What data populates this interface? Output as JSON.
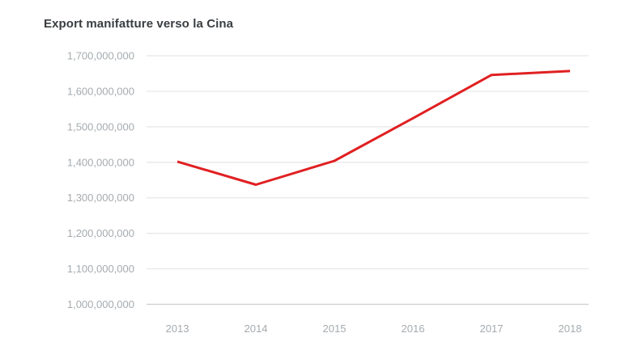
{
  "chart": {
    "title": "Export manifatture verso la Cina"
  },
  "colors": {
    "line": "#e02022",
    "grid": "#e6e6e6",
    "grid_bottom": "#d2d3d4",
    "tick_label": "#a6abaf",
    "title": "#3a3d40",
    "background": "#ffffff"
  },
  "chart_data": {
    "type": "line",
    "title": "Export manifatture verso la Cina",
    "xlabel": "",
    "ylabel": "",
    "categories": [
      "2013",
      "2014",
      "2015",
      "2016",
      "2017",
      "2018"
    ],
    "series": [
      {
        "name": "Export manifatture verso la Cina",
        "values": [
          1402000000,
          1337000000,
          1404000000,
          1524000000,
          1646000000,
          1657000000
        ]
      }
    ],
    "ylim": [
      1000000000,
      1700000000
    ],
    "y_ticks": [
      {
        "value": 1700000000,
        "label": "1,700,000,000"
      },
      {
        "value": 1600000000,
        "label": "1,600,000,000"
      },
      {
        "value": 1500000000,
        "label": "1,500,000,000"
      },
      {
        "value": 1400000000,
        "label": "1,400,000,000"
      },
      {
        "value": 1300000000,
        "label": "1,300,000,000"
      },
      {
        "value": 1200000000,
        "label": "1,200,000,000"
      },
      {
        "value": 1100000000,
        "label": "1,100,000,000"
      },
      {
        "value": 1000000000,
        "label": "1,000,000,000"
      }
    ],
    "grid": "horizontal",
    "legend": "none"
  }
}
